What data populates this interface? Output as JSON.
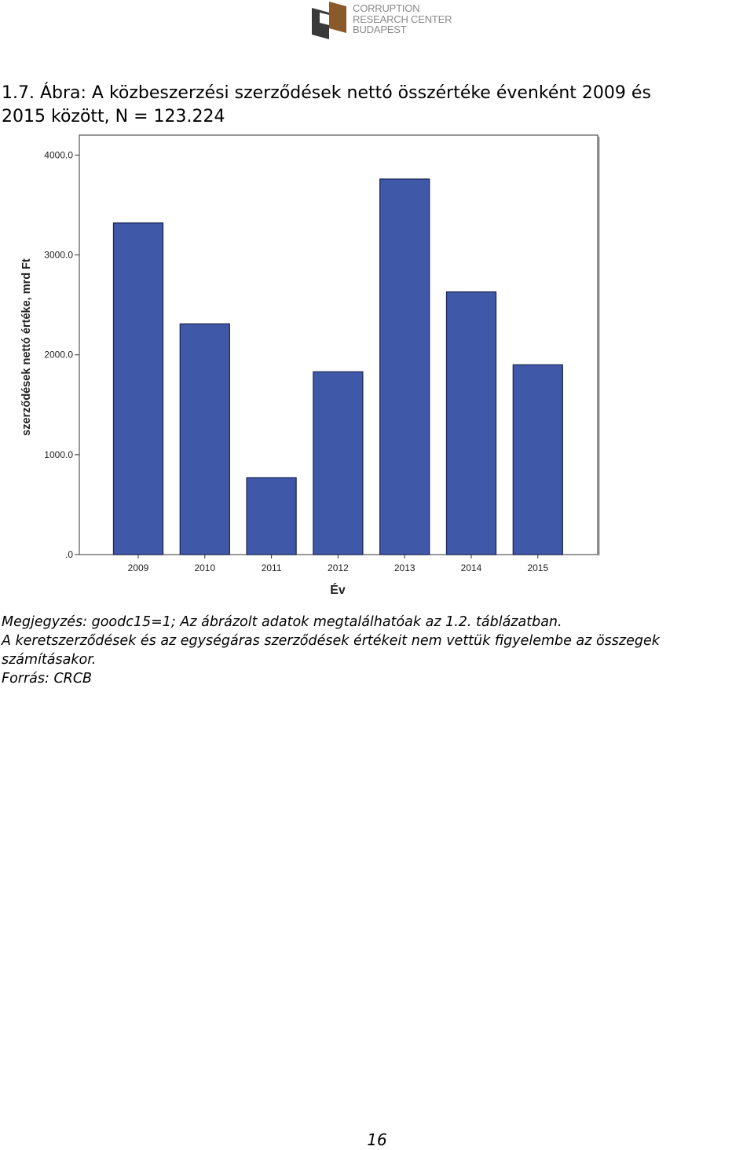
{
  "logo": {
    "lines": [
      "CORRUPTION",
      "RESEARCH CENTER",
      "BUDAPEST"
    ],
    "colors": {
      "mark": "#8b5a2b",
      "mark_dark": "#3a3a3a",
      "text": "#8a8a8a"
    }
  },
  "title": {
    "line1": "1.7. Ábra: A közbeszerzési szerződések nettó összértéke évenként 2009 és",
    "line2": "2015 között, N = 123.224"
  },
  "chart_data": {
    "type": "bar",
    "categories": [
      "2009",
      "2010",
      "2011",
      "2012",
      "2013",
      "2014",
      "2015"
    ],
    "values": [
      3320,
      2310,
      770,
      1830,
      3760,
      2630,
      1900
    ],
    "xlabel": "Év",
    "ylabel": "szerződések nettó értéke, mrd Ft",
    "ylim": [
      0,
      4200
    ],
    "yticks": [
      0,
      1000,
      2000,
      3000,
      4000
    ],
    "ytick_labels": [
      ".0",
      "1000.0",
      "2000.0",
      "3000.0",
      "4000.0"
    ],
    "bar_color": "#3f58a8",
    "bar_edge": "#1f2a5a",
    "grid": false
  },
  "notes": {
    "line1": "Megjegyzés: goodc15=1; Az ábrázolt adatok megtalálhatóak az 1.2. táblázatban.",
    "line2": "A keretszerződések és az egységáras szerződések értékeit nem vettük figyelembe az összegek",
    "line3": "számításakor.",
    "line4": "Forrás: CRCB"
  },
  "page_number": "16"
}
